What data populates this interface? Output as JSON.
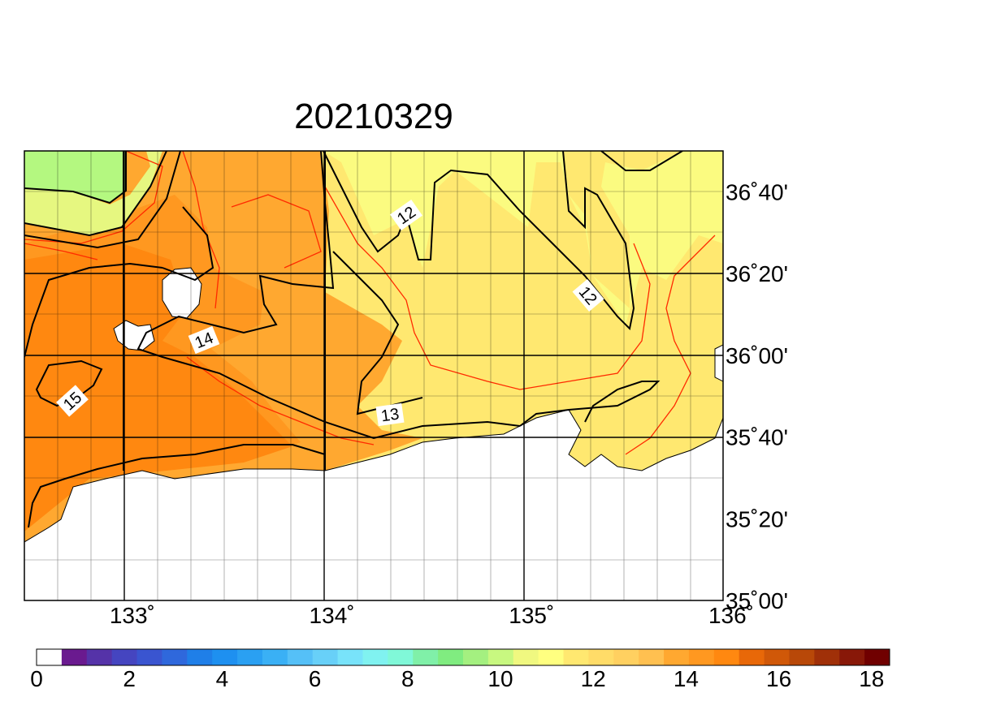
{
  "title": "20210329",
  "lon_ticks": [
    {
      "lon": 133,
      "label": "133˚"
    },
    {
      "lon": 134,
      "label": "134˚"
    },
    {
      "lon": 135,
      "label": "135˚"
    },
    {
      "lon": 136,
      "label": "136˚"
    }
  ],
  "lat_ticks": [
    {
      "lat": 36.6667,
      "label": "36˚40'"
    },
    {
      "lat": 36.3333,
      "label": "36˚20'"
    },
    {
      "lat": 36.0,
      "label": "36˚00'"
    },
    {
      "lat": 35.6667,
      "label": "35˚40'"
    },
    {
      "lat": 35.3333,
      "label": "35˚20'"
    },
    {
      "lat": 35.0,
      "label": "35˚00'"
    }
  ],
  "contour_labels": [
    {
      "text": "12",
      "name": "contour-label-12-north"
    },
    {
      "text": "12",
      "name": "contour-label-12-east"
    },
    {
      "text": "14",
      "name": "contour-label-14"
    },
    {
      "text": "15",
      "name": "contour-label-15"
    },
    {
      "text": "13",
      "name": "contour-label-13"
    }
  ],
  "colorbar": {
    "tick_labels": [
      "0",
      "2",
      "4",
      "6",
      "8",
      "10",
      "12",
      "14",
      "16",
      "18"
    ],
    "colors": [
      "#ffffff",
      "#6a1a8f",
      "#5533a8",
      "#4545c0",
      "#3a55d0",
      "#2f68dc",
      "#1f7fe8",
      "#1e90f0",
      "#2aa0f2",
      "#3ab0f5",
      "#55c0f7",
      "#68d0f8",
      "#78e3fa",
      "#80f2f0",
      "#80f8d8",
      "#80f0a8",
      "#80ec80",
      "#a4f080",
      "#c8f880",
      "#f0f880",
      "#ffff80",
      "#ffe870",
      "#ffdc68",
      "#ffd060",
      "#ffc050",
      "#ffa830",
      "#ff9820",
      "#ff8810",
      "#e86808",
      "#d05808",
      "#b84808",
      "#a03008",
      "#881808",
      "#700000"
    ]
  },
  "colors": {
    "sst_11": "#b4f880",
    "sst_11_5": "#e6f780",
    "sst_12": "#fbfb80",
    "sst_12_5": "#ffe870",
    "sst_13": "#ffdc68",
    "sst_14": "#ffa830",
    "sst_15": "#ff9820",
    "sst_15_5": "#ff8810",
    "land": "#ffffff",
    "contour_major": "#000000",
    "contour_minor": "#ff2a00"
  }
}
